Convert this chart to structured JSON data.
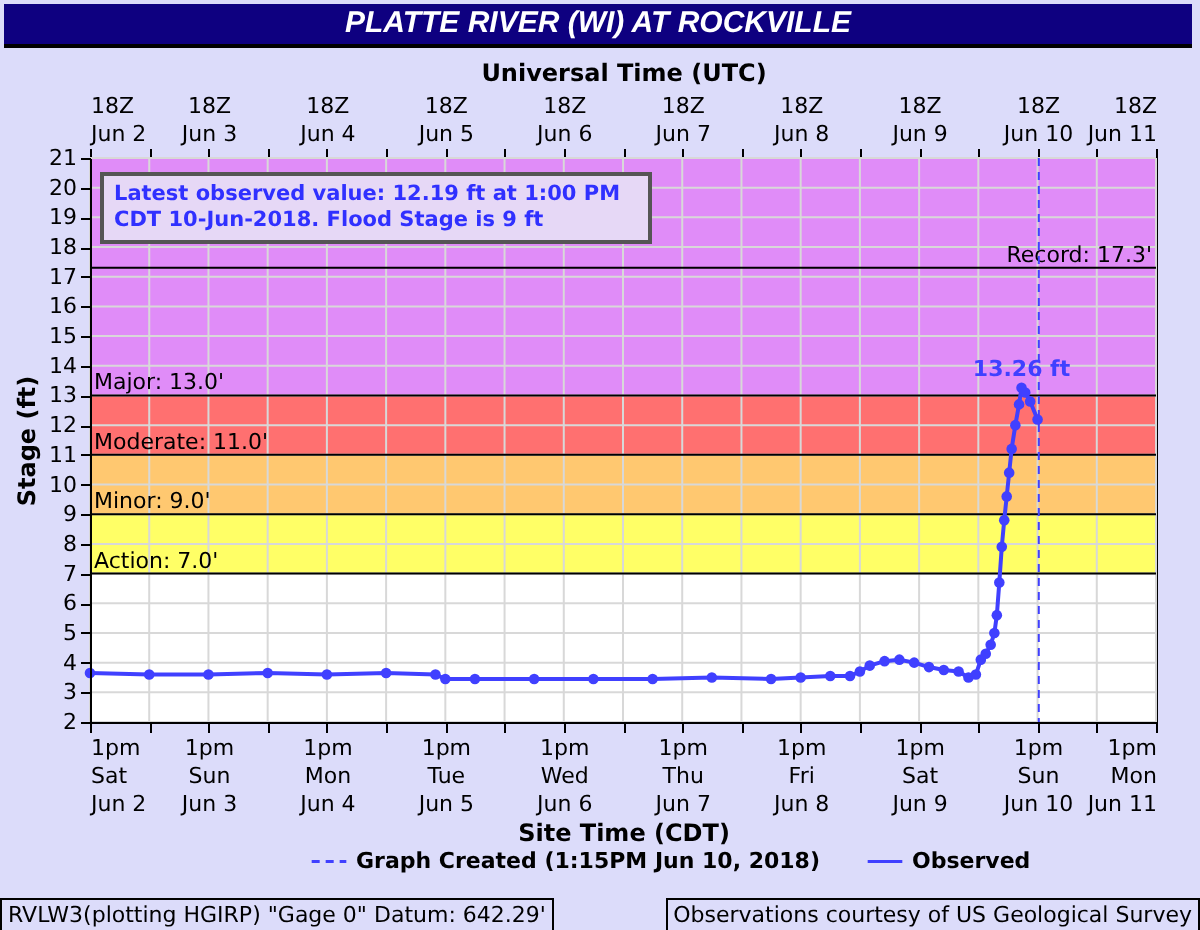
{
  "chart_data": {
    "type": "line",
    "title": "PLATTE RIVER (WI) AT ROCKVILLE",
    "x2label": "Universal Time (UTC)",
    "xlabel": "Site Time (CDT)",
    "ylabel": "Stage (ft)",
    "xlim": [
      "2018-06-02T13:00",
      "2018-06-11T13:00"
    ],
    "xticks": [
      {
        "value": "2018-06-02T13:00",
        "label": "1pm\nSat\nJun 2"
      },
      {
        "value": "2018-06-03T01:00",
        "label": null
      },
      {
        "value": "2018-06-03T13:00",
        "label": "1pm\nSun\nJun 3"
      },
      {
        "value": "2018-06-04T01:00",
        "label": null
      },
      {
        "value": "2018-06-04T13:00",
        "label": "1pm\nMon\nJun 4"
      },
      {
        "value": "2018-06-05T01:00",
        "label": null
      },
      {
        "value": "2018-06-05T13:00",
        "label": "1pm\nTue\nJun 5"
      },
      {
        "value": "2018-06-06T01:00",
        "label": null
      },
      {
        "value": "2018-06-06T13:00",
        "label": "1pm\nWed\nJun 6"
      },
      {
        "value": "2018-06-07T01:00",
        "label": null
      },
      {
        "value": "2018-06-07T13:00",
        "label": "1pm\nThu\nJun 7"
      },
      {
        "value": "2018-06-08T01:00",
        "label": null
      },
      {
        "value": "2018-06-08T13:00",
        "label": "1pm\nFri\nJun 8"
      },
      {
        "value": "2018-06-09T01:00",
        "label": null
      },
      {
        "value": "2018-06-09T13:00",
        "label": "1pm\nSat\nJun 9"
      },
      {
        "value": "2018-06-10T01:00",
        "label": null
      },
      {
        "value": "2018-06-10T13:00",
        "label": "1pm\nSun\nJun 10"
      },
      {
        "value": "2018-06-11T01:00",
        "label": null
      },
      {
        "value": "2018-06-11T13:00",
        "label": "1pm\nMon\nJun 11"
      }
    ],
    "x2lim": [
      "2018-06-02T13:00",
      "2018-06-11T13:00"
    ],
    "x2ticks": [
      {
        "value": "2018-06-02T13:00",
        "label": "18Z\nJun 2"
      },
      {
        "value": "2018-06-03T01:00",
        "label": null
      },
      {
        "value": "2018-06-03T13:00",
        "label": "18Z\nJun 3"
      },
      {
        "value": "2018-06-04T01:00",
        "label": null
      },
      {
        "value": "2018-06-04T13:00",
        "label": "18Z\nJun 4"
      },
      {
        "value": "2018-06-05T01:00",
        "label": null
      },
      {
        "value": "2018-06-05T13:00",
        "label": "18Z\nJun 5"
      },
      {
        "value": "2018-06-06T01:00",
        "label": null
      },
      {
        "value": "2018-06-06T13:00",
        "label": "18Z\nJun 6"
      },
      {
        "value": "2018-06-07T01:00",
        "label": null
      },
      {
        "value": "2018-06-07T13:00",
        "label": "18Z\nJun 7"
      },
      {
        "value": "2018-06-08T01:00",
        "label": null
      },
      {
        "value": "2018-06-08T13:00",
        "label": "18Z\nJun 8"
      },
      {
        "value": "2018-06-09T01:00",
        "label": null
      },
      {
        "value": "2018-06-09T13:00",
        "label": "18Z\nJun 9"
      },
      {
        "value": "2018-06-10T01:00",
        "label": null
      },
      {
        "value": "2018-06-10T13:00",
        "label": "18Z\nJun 10"
      },
      {
        "value": "2018-06-11T01:00",
        "label": null
      },
      {
        "value": "2018-06-11T13:00",
        "label": "18Z\nJun 11"
      }
    ],
    "ylim": [
      2,
      21
    ],
    "yticks": [
      2,
      3,
      4,
      5,
      6,
      7,
      8,
      9,
      10,
      11,
      12,
      13,
      14,
      15,
      16,
      17,
      18,
      19,
      20,
      21
    ],
    "grid": true,
    "marker": "circle",
    "legend": "bottom",
    "x": [
      "2018-06-02T13:00",
      "2018-06-03T01:00",
      "2018-06-03T13:00",
      "2018-06-04T01:00",
      "2018-06-04T13:00",
      "2018-06-05T01:00",
      "2018-06-05T11:00",
      "2018-06-05T13:00",
      "2018-06-05T19:00",
      "2018-06-06T07:00",
      "2018-06-06T19:00",
      "2018-06-07T07:00",
      "2018-06-07T19:00",
      "2018-06-08T07:00",
      "2018-06-08T13:00",
      "2018-06-08T19:00",
      "2018-06-08T23:00",
      "2018-06-09T01:00",
      "2018-06-09T03:00",
      "2018-06-09T06:00",
      "2018-06-09T09:00",
      "2018-06-09T12:00",
      "2018-06-09T15:00",
      "2018-06-09T18:00",
      "2018-06-09T21:00",
      "2018-06-09T23:00",
      "2018-06-10T00:30",
      "2018-06-10T01:30",
      "2018-06-10T02:30",
      "2018-06-10T03:30",
      "2018-06-10T04:15",
      "2018-06-10T04:45",
      "2018-06-10T05:15",
      "2018-06-10T05:45",
      "2018-06-10T06:15",
      "2018-06-10T06:45",
      "2018-06-10T07:15",
      "2018-06-10T07:45",
      "2018-06-10T08:30",
      "2018-06-10T09:15",
      "2018-06-10T09:45",
      "2018-06-10T10:30",
      "2018-06-10T11:30",
      "2018-06-10T13:00"
    ],
    "series": [
      {
        "name": "Observed",
        "color": "#4040ff",
        "values": [
          3.65,
          3.6,
          3.6,
          3.65,
          3.6,
          3.65,
          3.6,
          3.45,
          3.45,
          3.45,
          3.45,
          3.45,
          3.5,
          3.45,
          3.5,
          3.55,
          3.55,
          3.7,
          3.9,
          4.05,
          4.1,
          4.0,
          3.85,
          3.75,
          3.7,
          3.5,
          3.6,
          4.1,
          4.3,
          4.6,
          5.0,
          5.6,
          6.7,
          7.9,
          8.8,
          9.6,
          10.4,
          11.2,
          12.0,
          12.7,
          13.26,
          13.1,
          12.8,
          12.19
        ]
      }
    ],
    "bands": [
      {
        "axis": "y",
        "from": 7,
        "to": 9,
        "label": "Action: 7.0'",
        "color": "#ffff66"
      },
      {
        "axis": "y",
        "from": 9,
        "to": 11,
        "label": "Minor: 9.0'",
        "color": "#ffc870"
      },
      {
        "axis": "y",
        "from": 11,
        "to": 13,
        "label": "Moderate: 11.0'",
        "color": "#ff7070"
      },
      {
        "axis": "y",
        "from": 13,
        "to": 21,
        "label": "Major: 13.0'",
        "color": "#e08cf8"
      }
    ],
    "ref_lines": [
      {
        "axis": "y",
        "value": 17.3,
        "label": "Record: 17.3'",
        "color": "#000000"
      },
      {
        "axis": "x",
        "value": "2018-06-10T13:15",
        "label": "Graph Created (1:15PM Jun 10, 2018)",
        "color": "#4040ff",
        "line_style": "dashed"
      }
    ],
    "annotations": [
      "Latest observed value: 12.19 ft at 1:00 PM CDT 10-Jun-2018.  Flood Stage is 9 ft",
      {
        "text": "13.26 ft",
        "x": "2018-06-10T09:45",
        "y": 13.26
      },
      "RVLW3(plotting HGIRP) \"Gage 0\" Datum: 642.29'",
      "Observations courtesy of US Geological Survey"
    ]
  }
}
